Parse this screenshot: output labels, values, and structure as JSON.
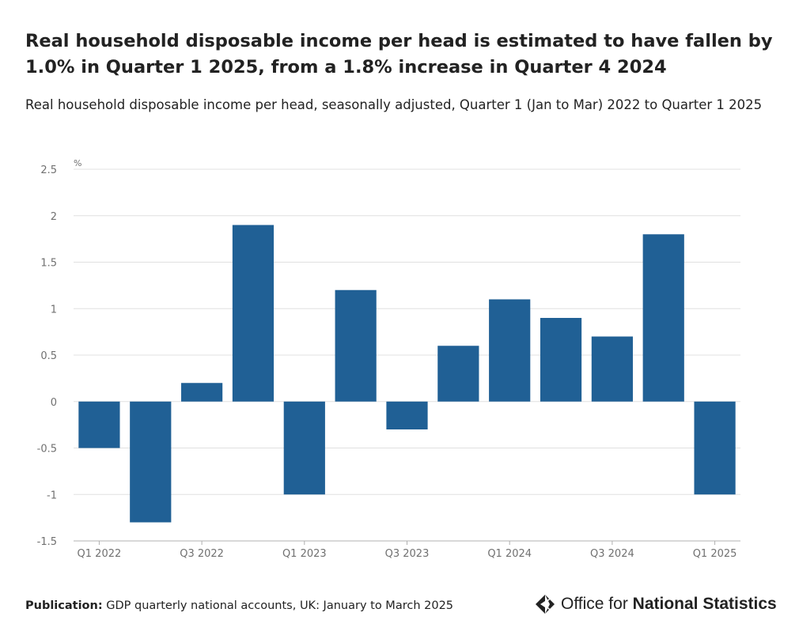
{
  "title": "Real household disposable income per head is estimated to have fallen by 1.0% in Quarter 1 2025, from a 1.8% increase in Quarter 4 2024",
  "subtitle": "Real household disposable income per head, seasonally adjusted, Quarter 1 (Jan to Mar) 2022 to Quarter 1 2025",
  "footer": {
    "publication_label": "Publication:",
    "publication_text": "GDP quarterly national accounts, UK: January to March 2025"
  },
  "logo": {
    "text_regular": "Office for ",
    "text_bold": "National Statistics",
    "icon": "ons-logo-icon"
  },
  "colors": {
    "bar": "#206095",
    "grid": "#e0e0e0",
    "axis_text": "#707070"
  },
  "chart_data": {
    "type": "bar",
    "ylabel": "%",
    "ylim": [
      -1.5,
      2.5
    ],
    "yticks": [
      "2.5",
      "2",
      "1.5",
      "1",
      "0.5",
      "0",
      "-0.5",
      "-1",
      "-1.5"
    ],
    "ytick_values": [
      2.5,
      2,
      1.5,
      1,
      0.5,
      0,
      -0.5,
      -1,
      -1.5
    ],
    "categories": [
      "Q1 2022",
      "Q2 2022",
      "Q3 2022",
      "Q4 2022",
      "Q1 2023",
      "Q2 2023",
      "Q3 2023",
      "Q4 2023",
      "Q1 2024",
      "Q2 2024",
      "Q3 2024",
      "Q4 2024",
      "Q1 2025"
    ],
    "xtick_labels": [
      "Q1 2022",
      "Q3 2022",
      "Q1 2023",
      "Q3 2023",
      "Q1 2024",
      "Q3 2024",
      "Q1 2025"
    ],
    "xtick_indices": [
      0,
      2,
      4,
      6,
      8,
      10,
      12
    ],
    "values": [
      -0.5,
      -1.3,
      0.2,
      1.9,
      -1.0,
      1.2,
      -0.3,
      0.6,
      1.1,
      0.9,
      0.7,
      1.8,
      -1.0
    ],
    "grid": true,
    "legend": "none"
  }
}
